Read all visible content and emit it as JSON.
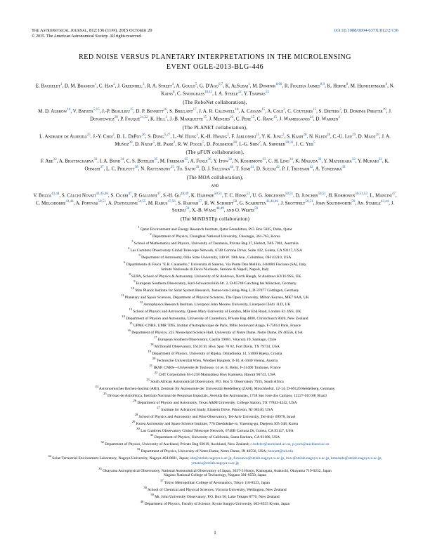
{
  "header": {
    "journal": "The Astrophysical Journal, 812:136 (11pp), 2015 October 20",
    "doi": "doi:10.1088/0004-637X/812/2/136",
    "copyright": "© 2015. The American Astronomical Society. All rights reserved."
  },
  "title_line1": "RED NOISE VERSUS PLANETARY INTERPRETATIONS IN THE MICROLENSING",
  "title_line2": "EVENT OGLE-2013-BLG-446",
  "collab1": "(The RoboNet collaboration),",
  "collab2": "(The PLANET collaboration),",
  "collab3": "(The μFUN collaboration),",
  "collab4": "(The MOA collaboration),",
  "collab5": "(The MiNDSTEp collaboration)",
  "and": "and",
  "authors1": "E. Bachelet<sup>1</sup>, D. M. Bramich<sup>1</sup>, C. Han<sup>2</sup>, J. Greenhill<sup>3</sup>, R. A. Street<sup>4</sup>, A. Gould<sup>5</sup>, G. D'Ago<sup>6,7</sup>, K. AlSubai<sup>1</sup>, M. Dominik<sup>8,60</sup>, R. Figuera Jaimes<sup>8,9</sup>, K. Horne<sup>8</sup>, M. Hundertmark<sup>8</sup>, N. Kains<sup>8</sup>, C. Snodgrass<sup>10,11</sup>, I. A. Steele<sup>12</sup>, Y. Tsapras<sup>13</sup>",
  "authors2": "M. D. Albrow<sup>14</sup>, V. Batista<sup>5,15</sup>, J.-P. Beaulieu<sup>15</sup>, D. P. Bennett<sup>16</sup>, S. Brillant<sup>17</sup>, J. A. R. Caldwell<sup>18</sup>, A. Cassan<sup>15</sup>, A. Cole<sup>3</sup>, C. Coutures<sup>15</sup>, S. Dieters<sup>3</sup>, D. Dominis Prester<sup>19</sup>, J. Donatowicz<sup>20</sup>, P. Fouqué<sup>21,22</sup>, K. Hill<sup>3</sup>, J.-B. Marquette<sup>15</sup>, J. Menzies<sup>23</sup>, C. Pere<sup>15</sup>, C. Ranc<sup>15</sup>, J. Wambsganss<sup>24</sup>, D. Warren<sup>3</sup>",
  "authors3": "L. Andrade de Almeida<sup>25</sup>, J.-Y. Choi<sup>2</sup>, D. L. DePoy<sup>26</sup>, S. Dong<sup>5,27</sup>, L.-W. Hung<sup>5</sup>, K.-H. Hwang<sup>2</sup>, F. Jablonski<sup>25</sup>, Y. K. Jung<sup>2</sup>, S. Kaspi<sup>28</sup>, N. Klein<sup>28</sup>, C.-U. Lee<sup>29</sup>, D. Maoz<sup>28</sup>, J. A. Muñoz<sup>30</sup>, D. Nataf<sup>5</sup>, H. Park<sup>2</sup>, R. W. Pogge<sup>5</sup>, D. Polishook<sup>28</sup>, I.-G. Shin<sup>2</sup>, A. Shporer<sup>30,31</sup>, J. C. Yee<sup>5</sup>",
  "authors4": "F. Abe<sup>32</sup>, A. Bhattacharya<sup>33</sup>, I. A. Bond<sup>34</sup>, C. S. Botzler<sup>35</sup>, M. Freeman<sup>35</sup>, A. Fukui<sup>36</sup>, Y. Itow<sup>32</sup>, N. Koshimoto<sup>33</sup>, C. H. Ling<sup>34</sup>, K. Masuda<sup>32</sup>, Y. Matsubara<sup>32</sup>, Y. Muraki<sup>32</sup>, K. Ohnishi<sup>37</sup>, L. C. Philpott<sup>38</sup>, N. Rattenbury<sup>35</sup>, To. Saito<sup>39</sup>, D. J. Sullivan<sup>40</sup>, T. Sumi<sup>41</sup>, D. Suzuki<sup>42</sup>, P. J. Tristram<sup>42</sup>, A. Yonehara<sup>43</sup>",
  "authors5": "V. Bozza<sup>43,44</sup>, S. Calchi Novati<sup>43,45,46</sup>, S. Ciceri<sup>47</sup>, P. Galianni<sup>47</sup>, S.-H. Gu<sup>48,49</sup>, K. Harpsøe<sup>50,51</sup>, T. C. Hinse<sup>52</sup>, U. G. Jørgensen<sup>50,51</sup>, D. Juncher<sup>50,51</sup>, H. Korhonen<sup>50,51,53</sup>, L. Mancini<sup>47</sup>, C. Melchiorre<sup>43,44</sup>, A. Popovas<sup>50,51</sup>, A. Postiglione<sup>54,55</sup>, M. Rabus<sup>47,56</sup>, S. Rahvar<sup>57</sup>, R. W. Schmidt<sup>58</sup>, G. Scarpetta<sup>43,44,46</sup>, J. Skottfelt<sup>50,51</sup>, John Southworth<sup>59</sup>, An. Stabile<sup>43,44</sup>, J. Surdej<sup>59</sup>, X.-B. Wang<sup>48,49</sup>, and O. Wertz<sup>59</sup>",
  "affils": [
    "<sup>1</sup> Qatar Environment and Energy Research Institute, Qatar Foundation, P.O. Box 5825, Doha, Qatar",
    "<sup>2</sup> Department of Physics, Chungbuk National University, Cheongju, 361-763, Korea",
    "<sup>3</sup> School of Mathematics and Physics, University of Tasmania, Private Bag 37, Hobart, TAS 7001, Australia",
    "<sup>4</sup> Las Cumbres Observatory Global Telescope Network, 6740 Cortona Drive, Suite 102, Goleta, CA 93117, USA",
    "<sup>5</sup> Department of Astronomy, Ohio State University, 140 W. 18th Ave., Columbus, OH 43210, USA",
    "<sup>6</sup> Dipartimento di Fisica \"E.R. Caianiello,\" Università di Salerno, Via Ponte Don Melillo, I-84084 Fisciano (SA), Italy",
    "Istituto Nazionale di Fisica Nucleare, Sezione di Napoli, Napoli, Italy",
    "<sup>8</sup> SUPA, School of Physics & Astronomy, University of St Andrews, North Haugh, St Andrews KY16 9SS, UK",
    "<sup>9</sup> European Southern Observatory, Karl-Schwarzschild-Str. 2, D-85748 Garching bei München, Germany",
    "<sup>10</sup> Max Planck Institute for Solar System Research, Justus-von-Liebig-Weg 3, D-37077 Göttingen, Germany",
    "<sup>11</sup> Planetary and Space Sciences, Department of Physical Sciences, The Open University, Milton Keynes, MK7 6AA, UK",
    "<sup>12</sup> Astrophysics Research Institute, Liverpool John Moores University, Liverpool CH41 1LD, UK",
    "<sup>13</sup> School of Physics and Astronomy, Queen Mary University of London, Mile End Road, London E1 4NS, UK",
    "<sup>14</sup> Department of Physics and Astronomy, University of Canterbury, Private Bag 4800, Christchurch 8020, New Zealand",
    "<sup>15</sup> UPMC-CNRS, UMR 7095, Institut d'Astrophysique de Paris, 98bis boulevard Arago, F-75014 Paris, France",
    "<sup>16</sup> Department of Physics, 225 Nieuwland Science Hall, University of Notre Dame, Notre Dame, IN 46556, USA",
    "<sup>17</sup> European Southern Observatory, Casilla 19001, Vitacura 19, Santiago, Chile",
    "<sup>18</sup> McDonald Observatory, 16120 St. Hwy Spur 78 #2, Fort Davis, TX 79734, USA",
    "<sup>19</sup> Department of Physics, University of Rijeka, Omladinska 14, 51000 Rijeka, Croatia",
    "<sup>20</sup> Technische Universität Wien, Wiedner Hauptstr. 8-10, A-1040 Vienna, Austria",
    "<sup>21</sup> IRAP, CNRS—Université de Toulouse, 14 av. E. Belin, F-31400 Toulouse, France",
    "<sup>22</sup> CHT Corporation 65-1238 Mamalahoa Hwy Kamuela, Hawaii 96743, USA",
    "<sup>23</sup> South African Astronomical Observatory, P.O. Box 9, Observatory 7935, South Africa",
    "<sup>24</sup> Astronomisches Rechen-Institut (ARI), Zentrum für Astronomie der Universität Heidelberg (ZAH), Mönchhofstr. 12-14, D-69120 Heidelberg, Germany",
    "<sup>25</sup> Divisao de Astrofisica, Instituto Nacional de Pesquisas Espaciais, Avenida dos Astronautas, 1758 Sao José dos Campos, 12227-010 SP, Brazil",
    "<sup>26</sup> Department of Physics and Astronomy, Texas A&M University, College Station, TX 77843-4242, USA",
    "<sup>27</sup> Institute for Advanced Study, Einstein Drive, Princeton, NJ 08540, USA",
    "<sup>28</sup> School of Physics and Astronomy and Wise Observatory, Tel-Aviv University, Tel-Aviv 69978, Israel",
    "<sup>29</sup> Korea Astronomy and Space Science Institute, 776 Daedukdae-ro, Yuseong-gu, Daejeon 305-348, Korea",
    "<sup>30</sup> Las Cumbres Observatory Global Telescope Network, 6740B Cortona Dr, Goleta, CA 93117, USA",
    "<sup>31</sup> Department of Physics, University of California, Santa Barbara, CA 93106, USA",
    "<sup>32</sup> Department of Physics, University of Auckland, Private Bag 92019, Auckland, New Zealand; <span class=\"email\">c.botzler@auckland.ac.nz</span>, <span class=\"email\">p.yock@auckland.ac.nz</span>",
    "<sup>33</sup> Department of Physics, University of Notre Dame, Notre Dame, IN 46556, USA; <span class=\"email\">bennett@nd.edu</span>",
    "<sup>34</sup> Solar-Terrestrial Environment Laboratory, Nagoya University, Nagoya 464-8601, Japan; <span class=\"email\">abe@stelab.nagoya-u.ac.jp</span>, <span class=\"email\">furusawa@stelab.nagoya-u.ac.jp</span>, <span class=\"email\">itow@stelab.nagoya-u.ac.jp</span>, <span class=\"email\">kmasuda@stelab.nagoya-u.ac.jp</span>, <span class=\"email\">ymatsu@stelab.nagoya-u.ac.jp</span>",
    "<sup>35</sup> Okayama Astrophysical Observatory, National Astronomical Observatory of Japan, 3037-5 Honjo, Kamogata, Asakuchi, Okayama 719-0232, Japan",
    "Nagano National College of Technology, Nagano 381-8550, Japan",
    "<sup>37</sup> Tokyo Metropolitan College of Aeronautics, Tokyo 116-8523, Japan",
    "<sup>38</sup> School of Chemical and Physical Sciences, Victoria University, Wellington, New Zealand",
    "<sup>39</sup> Mt. John University Observatory, P.O. Box 56, Lake Tekapo 8770, New Zealand",
    "<sup>40</sup> Department of Physics, Faculty of Science, Kyoto Sangyo University, 603-8555 Kyoto, Japan"
  ],
  "pagenum": "1"
}
